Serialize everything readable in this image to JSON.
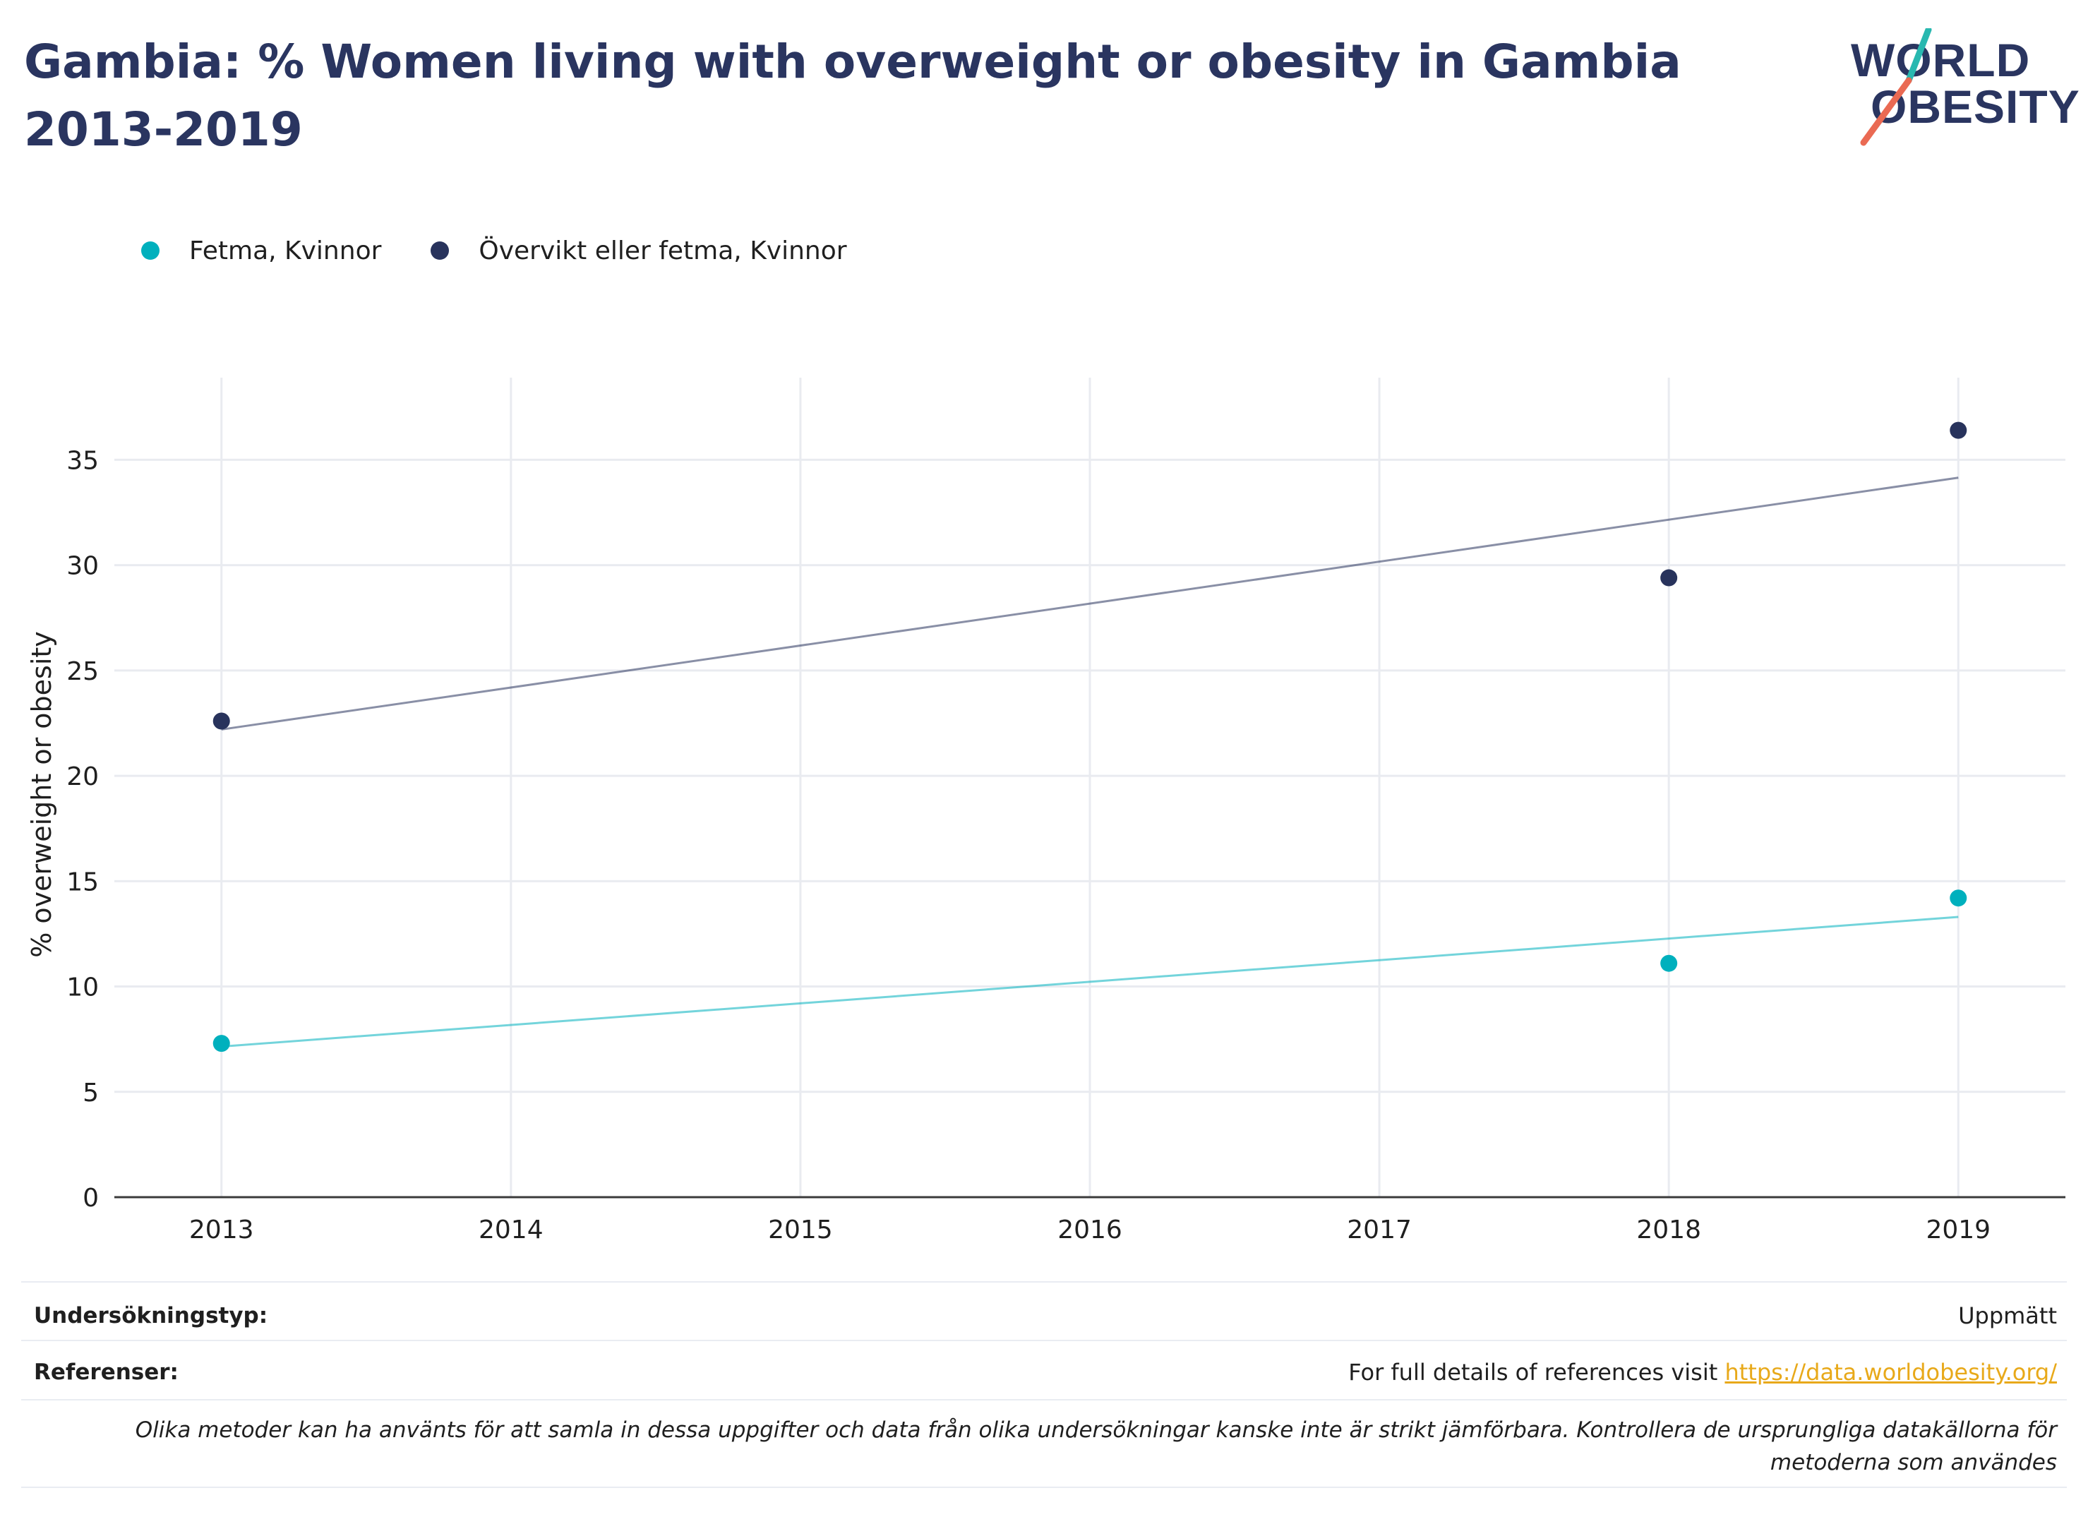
{
  "title": "Gambia: % Women living with overweight or obesity in Gambia 2013-2019",
  "logo": {
    "line1": "WORLD",
    "line2": "OBESITY"
  },
  "colors": {
    "fetma": "#00b0bd",
    "overvikt": "#28335c",
    "title": "#2a3560",
    "link": "#e8a91a",
    "logo_teal": "#29b8b0",
    "logo_coral": "#ea6a53"
  },
  "chart_data": {
    "type": "scatter",
    "x_ticks": [
      2013,
      2014,
      2015,
      2016,
      2017,
      2018,
      2019
    ],
    "y_ticks": [
      0,
      5,
      10,
      15,
      20,
      25,
      30,
      35
    ],
    "xlim": [
      2012.63,
      2019.37
    ],
    "ylim": [
      0,
      38.9
    ],
    "ylabel": "% overweight or obesity",
    "xlabel": "",
    "grid": true,
    "legend_position": "top-left",
    "series": [
      {
        "name": "Fetma, Kvinnor",
        "color": "#00b0bd",
        "points": [
          {
            "x": 2013,
            "y": 7.3
          },
          {
            "x": 2018,
            "y": 11.1
          },
          {
            "x": 2019,
            "y": 14.2
          }
        ],
        "trend": [
          {
            "x": 2013,
            "y": 7.15
          },
          {
            "x": 2019,
            "y": 13.3
          }
        ]
      },
      {
        "name": "Övervikt eller fetma, Kvinnor",
        "color": "#28335c",
        "points": [
          {
            "x": 2013,
            "y": 22.6
          },
          {
            "x": 2018,
            "y": 29.4
          },
          {
            "x": 2019,
            "y": 36.4
          }
        ],
        "trend": [
          {
            "x": 2013,
            "y": 22.2
          },
          {
            "x": 2019,
            "y": 34.15
          }
        ]
      }
    ]
  },
  "footer": {
    "survey_label": "Undersökningstyp:",
    "survey_value": "Uppmätt",
    "refs_label": "Referenser:",
    "refs_text": "For full details of references visit ",
    "refs_link": "https://data.worldobesity.org/",
    "note": "Olika metoder kan ha använts för att samla in dessa uppgifter och data från olika undersökningar kanske inte är strikt jämförbara. Kontrollera de ursprungliga datakällorna för metoderna som användes"
  }
}
